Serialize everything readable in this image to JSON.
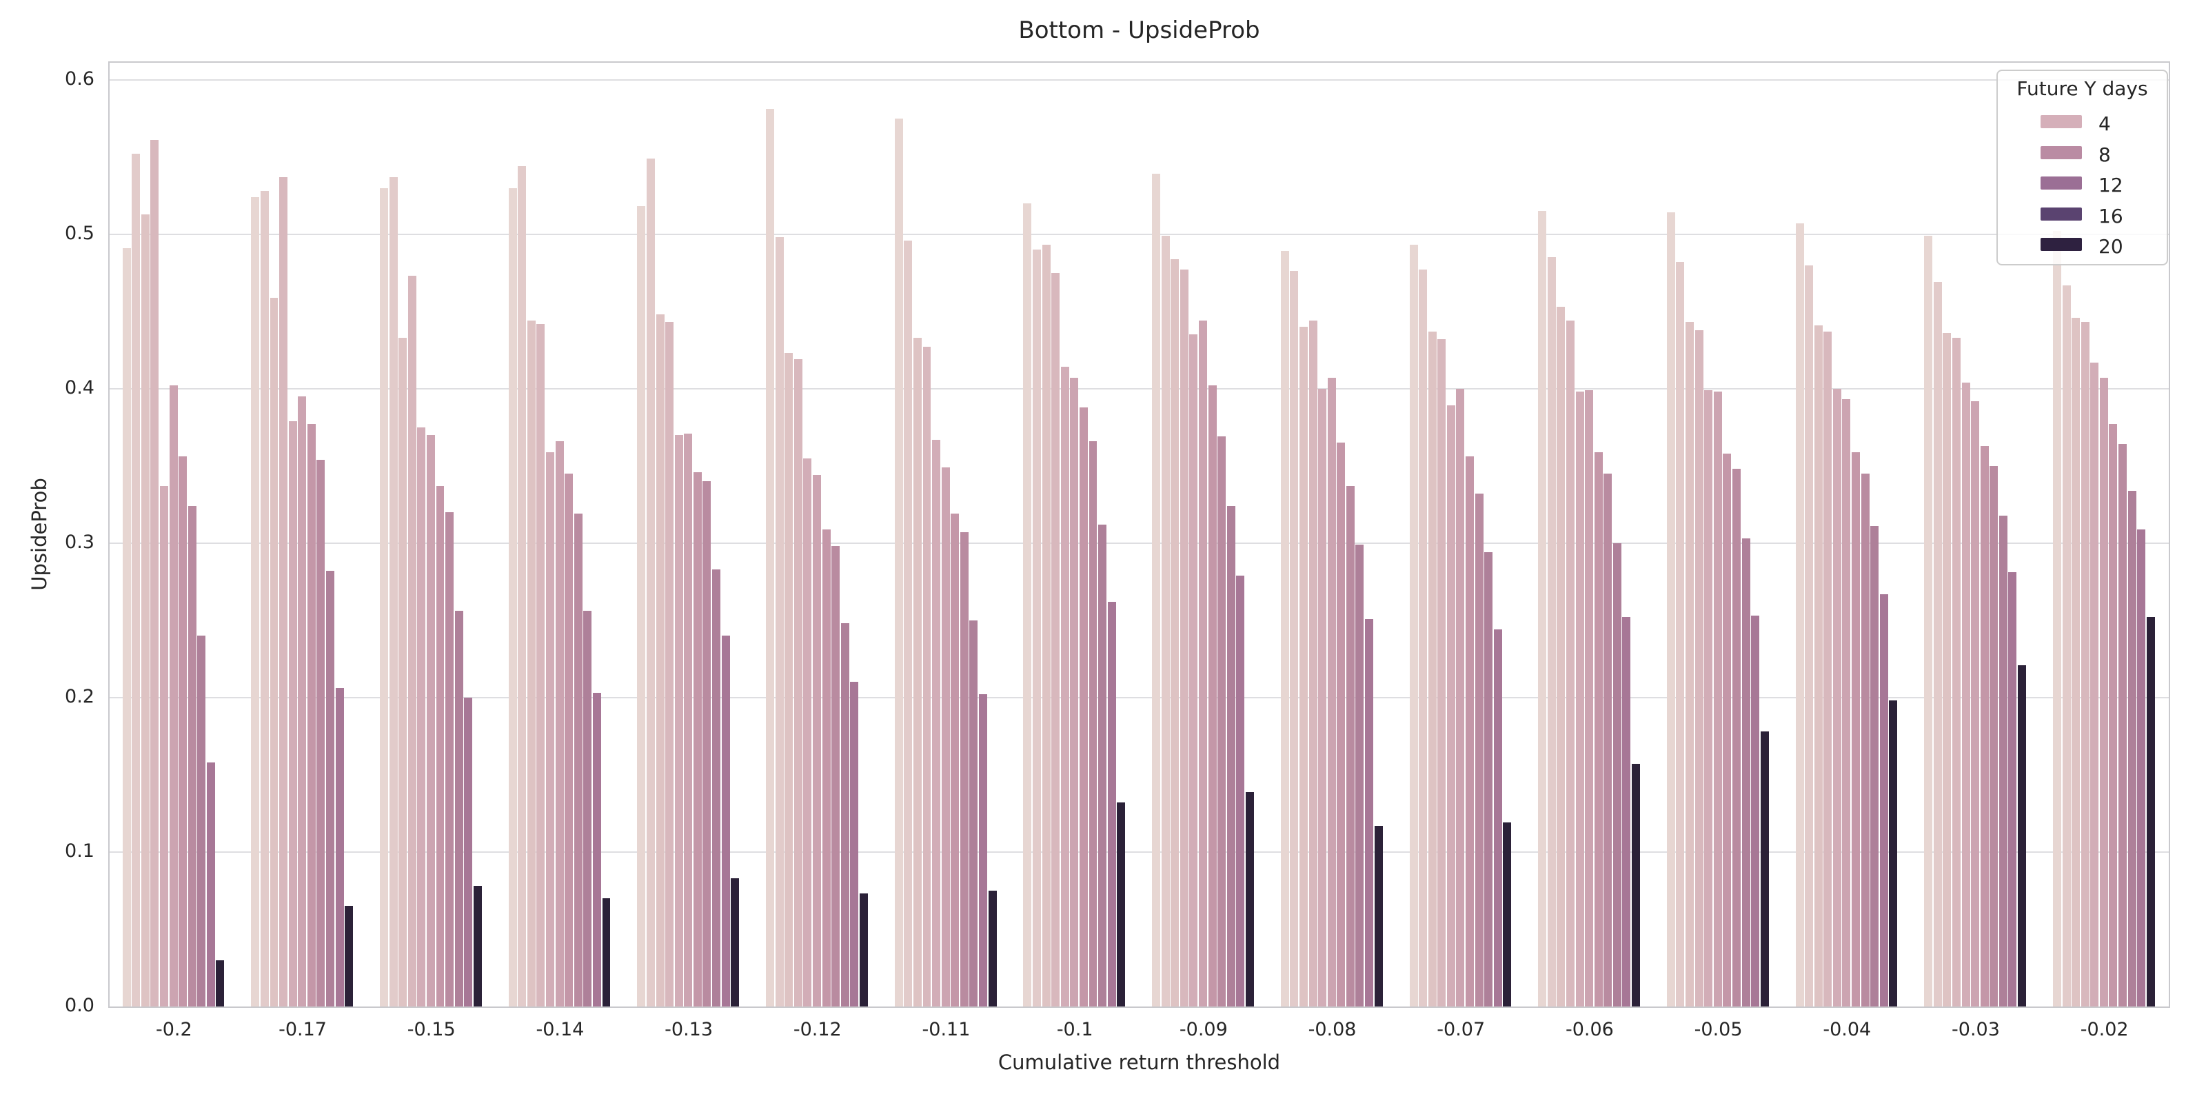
{
  "title": "Bottom - UpsideProb",
  "xlabel": "Cumulative return threshold",
  "ylabel": "UpsideProb",
  "legend": {
    "title": "Future Y days",
    "position": "upper right",
    "entries": [
      {
        "label": "4",
        "color": "#d5afb9"
      },
      {
        "label": "8",
        "color": "#ba8ba3"
      },
      {
        "label": "12",
        "color": "#9b6f95"
      },
      {
        "label": "16",
        "color": "#5a4370"
      },
      {
        "label": "20",
        "color": "#2e2140"
      }
    ]
  },
  "chart_data": {
    "type": "bar",
    "title": "Bottom - UpsideProb",
    "xlabel": "Cumulative return threshold",
    "ylabel": "UpsideProb",
    "ylim": [
      0,
      0.611
    ],
    "yticks": [
      0.0,
      0.1,
      0.2,
      0.3,
      0.4,
      0.5,
      0.6
    ],
    "yticklabels": [
      "0.0",
      "0.1",
      "0.2",
      "0.3",
      "0.4",
      "0.5",
      "0.6"
    ],
    "grid": "horizontal",
    "bars_per_group": 11,
    "bar_colors": [
      "#e7d6d2",
      "#e2cbca",
      "#dec3c3",
      "#d8b8bd",
      "#d2adb7",
      "#cca4b1",
      "#c497a8",
      "#b98ba0",
      "#ae8099",
      "#a77796",
      "#2b2138"
    ],
    "categories": [
      "-0.2",
      "-0.17",
      "-0.15",
      "-0.14",
      "-0.13",
      "-0.12",
      "-0.11",
      "-0.1",
      "-0.09",
      "-0.08",
      "-0.07",
      "-0.06",
      "-0.05",
      "-0.04",
      "-0.03",
      "-0.02"
    ],
    "groups": [
      {
        "category": "-0.2",
        "values": [
          0.491,
          0.552,
          0.513,
          0.561,
          0.337,
          0.402,
          0.356,
          0.324,
          0.24,
          0.158,
          0.03
        ]
      },
      {
        "category": "-0.17",
        "values": [
          0.524,
          0.528,
          0.459,
          0.537,
          0.379,
          0.395,
          0.377,
          0.354,
          0.282,
          0.206,
          0.065
        ]
      },
      {
        "category": "-0.15",
        "values": [
          0.53,
          0.537,
          0.433,
          0.473,
          0.375,
          0.37,
          0.337,
          0.32,
          0.256,
          0.2,
          0.078
        ]
      },
      {
        "category": "-0.14",
        "values": [
          0.53,
          0.544,
          0.444,
          0.442,
          0.359,
          0.366,
          0.345,
          0.319,
          0.256,
          0.203,
          0.07
        ]
      },
      {
        "category": "-0.13",
        "values": [
          0.518,
          0.549,
          0.448,
          0.443,
          0.37,
          0.371,
          0.346,
          0.34,
          0.283,
          0.24,
          0.083
        ]
      },
      {
        "category": "-0.12",
        "values": [
          0.581,
          0.498,
          0.423,
          0.419,
          0.355,
          0.344,
          0.309,
          0.298,
          0.248,
          0.21,
          0.073
        ]
      },
      {
        "category": "-0.11",
        "values": [
          0.575,
          0.496,
          0.433,
          0.427,
          0.367,
          0.349,
          0.319,
          0.307,
          0.25,
          0.202,
          0.075
        ]
      },
      {
        "category": "-0.1",
        "values": [
          0.52,
          0.49,
          0.493,
          0.475,
          0.414,
          0.407,
          0.388,
          0.366,
          0.312,
          0.262,
          0.132
        ]
      },
      {
        "category": "-0.09",
        "values": [
          0.539,
          0.499,
          0.484,
          0.477,
          0.435,
          0.444,
          0.402,
          0.369,
          0.324,
          0.279,
          0.139
        ]
      },
      {
        "category": "-0.08",
        "values": [
          0.489,
          0.476,
          0.44,
          0.444,
          0.4,
          0.407,
          0.365,
          0.337,
          0.299,
          0.251,
          0.117
        ]
      },
      {
        "category": "-0.07",
        "values": [
          0.493,
          0.477,
          0.437,
          0.432,
          0.389,
          0.4,
          0.356,
          0.332,
          0.294,
          0.244,
          0.119
        ]
      },
      {
        "category": "-0.06",
        "values": [
          0.515,
          0.485,
          0.453,
          0.444,
          0.398,
          0.399,
          0.359,
          0.345,
          0.3,
          0.252,
          0.157
        ]
      },
      {
        "category": "-0.05",
        "values": [
          0.514,
          0.482,
          0.443,
          0.438,
          0.399,
          0.398,
          0.358,
          0.348,
          0.303,
          0.253,
          0.178
        ]
      },
      {
        "category": "-0.04",
        "values": [
          0.507,
          0.48,
          0.441,
          0.437,
          0.4,
          0.393,
          0.359,
          0.345,
          0.311,
          0.267,
          0.198
        ]
      },
      {
        "category": "-0.03",
        "values": [
          0.499,
          0.469,
          0.436,
          0.433,
          0.404,
          0.392,
          0.363,
          0.35,
          0.318,
          0.281,
          0.221
        ]
      },
      {
        "category": "-0.02",
        "values": [
          0.502,
          0.467,
          0.446,
          0.443,
          0.417,
          0.407,
          0.377,
          0.364,
          0.334,
          0.309,
          0.252
        ]
      }
    ]
  }
}
